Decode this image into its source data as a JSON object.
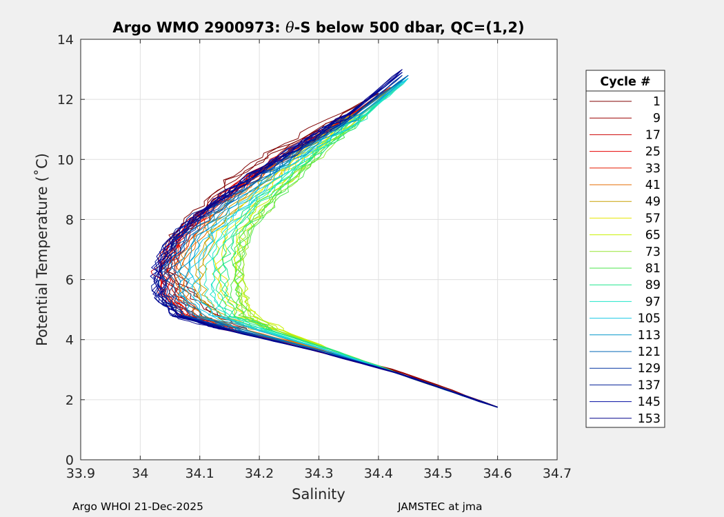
{
  "chart_data": {
    "type": "line",
    "title_parts": {
      "prefix": "Argo WMO 2900973: ",
      "theta": "θ",
      "suffix": "-S below 500 dbar,  QC=(1,2)"
    },
    "xlabel": "Salinity",
    "ylabel": "Potential Temperature (˚C)",
    "xlim": [
      33.9,
      34.7
    ],
    "ylim": [
      0,
      14
    ],
    "x_ticks": [
      33.9,
      34.0,
      34.1,
      34.2,
      34.3,
      34.4,
      34.5,
      34.6,
      34.7
    ],
    "x_tick_labels": [
      "33.9",
      "34",
      "34.1",
      "34.2",
      "34.3",
      "34.4",
      "34.5",
      "34.6",
      "34.7"
    ],
    "y_ticks": [
      0,
      2,
      4,
      6,
      8,
      10,
      12,
      14
    ],
    "y_tick_labels": [
      "0",
      "2",
      "4",
      "6",
      "8",
      "10",
      "12",
      "14"
    ],
    "grid": true,
    "legend_title": "Cycle #",
    "legend_placement": "right-outside",
    "series": [
      {
        "name": "1",
        "color": "#800000",
        "salinity": [
          34.6,
          34.44,
          34.32,
          34.2,
          34.13,
          34.09,
          34.05,
          34.06,
          34.1,
          34.15,
          34.22,
          34.31,
          34.4
        ],
        "temperature": [
          1.75,
          2.9,
          3.6,
          4.3,
          4.8,
          5.5,
          6.3,
          7.5,
          8.3,
          9.3,
          10.2,
          11.2,
          12.2
        ]
      },
      {
        "name": "9",
        "color": "#9b0000",
        "salinity": [
          34.6,
          34.44,
          34.31,
          34.18,
          34.1,
          34.06,
          34.04,
          34.06,
          34.11,
          34.18,
          34.26,
          34.34,
          34.42
        ],
        "temperature": [
          1.75,
          2.9,
          3.6,
          4.3,
          4.8,
          5.5,
          6.4,
          7.4,
          8.4,
          9.4,
          10.4,
          11.3,
          12.4
        ]
      },
      {
        "name": "17",
        "color": "#cc0000",
        "salinity": [
          34.6,
          34.43,
          34.3,
          34.16,
          34.08,
          34.04,
          34.03,
          34.06,
          34.12,
          34.19,
          34.27,
          34.35,
          34.42
        ],
        "temperature": [
          1.75,
          2.9,
          3.6,
          4.3,
          4.8,
          5.5,
          6.3,
          7.4,
          8.5,
          9.5,
          10.5,
          11.4,
          12.4
        ]
      },
      {
        "name": "25",
        "color": "#e60000",
        "salinity": [
          34.6,
          34.43,
          34.3,
          34.15,
          34.07,
          34.04,
          34.04,
          34.07,
          34.12,
          34.19,
          34.27,
          34.35,
          34.42
        ],
        "temperature": [
          1.75,
          2.9,
          3.6,
          4.3,
          4.8,
          5.5,
          6.4,
          7.5,
          8.5,
          9.5,
          10.5,
          11.4,
          12.4
        ]
      },
      {
        "name": "33",
        "color": "#e61a00",
        "salinity": [
          34.6,
          34.43,
          34.31,
          34.16,
          34.08,
          34.05,
          34.05,
          34.08,
          34.13,
          34.2,
          34.27,
          34.35,
          34.42
        ],
        "temperature": [
          1.75,
          2.9,
          3.6,
          4.3,
          4.8,
          5.5,
          6.4,
          7.5,
          8.5,
          9.5,
          10.5,
          11.4,
          12.4
        ]
      },
      {
        "name": "41",
        "color": "#e66b00",
        "salinity": [
          34.6,
          34.43,
          34.32,
          34.18,
          34.1,
          34.07,
          34.07,
          34.1,
          34.15,
          34.21,
          34.28,
          34.36,
          34.43
        ],
        "temperature": [
          1.75,
          2.9,
          3.6,
          4.3,
          4.8,
          5.5,
          6.5,
          7.6,
          8.6,
          9.6,
          10.6,
          11.5,
          12.5
        ]
      },
      {
        "name": "49",
        "color": "#c8a000",
        "salinity": [
          34.6,
          34.43,
          34.32,
          34.2,
          34.13,
          34.1,
          34.1,
          34.12,
          34.17,
          34.23,
          34.29,
          34.36,
          34.43
        ],
        "temperature": [
          1.75,
          2.9,
          3.6,
          4.3,
          4.8,
          5.5,
          6.5,
          7.6,
          8.6,
          9.6,
          10.6,
          11.5,
          12.5
        ]
      },
      {
        "name": "57",
        "color": "#e6e600",
        "salinity": [
          34.6,
          34.43,
          34.33,
          34.23,
          34.17,
          34.14,
          34.13,
          34.14,
          34.19,
          34.24,
          34.3,
          34.37,
          34.44
        ],
        "temperature": [
          1.75,
          2.9,
          3.6,
          4.3,
          4.8,
          5.5,
          6.5,
          7.6,
          8.6,
          9.6,
          10.6,
          11.5,
          12.5
        ]
      },
      {
        "name": "65",
        "color": "#c8f000",
        "salinity": [
          34.6,
          34.43,
          34.33,
          34.24,
          34.19,
          34.17,
          34.16,
          34.17,
          34.21,
          34.26,
          34.31,
          34.37,
          34.44
        ],
        "temperature": [
          1.75,
          2.9,
          3.6,
          4.3,
          4.8,
          5.5,
          6.5,
          7.6,
          8.6,
          9.6,
          10.6,
          11.5,
          12.5
        ]
      },
      {
        "name": "73",
        "color": "#96e632",
        "salinity": [
          34.6,
          34.43,
          34.33,
          34.23,
          34.18,
          34.17,
          34.17,
          34.18,
          34.22,
          34.27,
          34.32,
          34.38,
          34.44
        ],
        "temperature": [
          1.75,
          2.9,
          3.6,
          4.3,
          4.8,
          5.5,
          6.5,
          7.6,
          8.6,
          9.6,
          10.6,
          11.5,
          12.6
        ]
      },
      {
        "name": "81",
        "color": "#4be64b",
        "salinity": [
          34.6,
          34.43,
          34.33,
          34.22,
          34.17,
          34.16,
          34.16,
          34.18,
          34.22,
          34.27,
          34.32,
          34.38,
          34.44
        ],
        "temperature": [
          1.75,
          2.9,
          3.6,
          4.3,
          4.8,
          5.5,
          6.5,
          7.6,
          8.6,
          9.6,
          10.6,
          11.5,
          12.6
        ]
      },
      {
        "name": "89",
        "color": "#1ee68c",
        "salinity": [
          34.6,
          34.43,
          34.33,
          34.22,
          34.15,
          34.14,
          34.14,
          34.16,
          34.2,
          34.26,
          34.32,
          34.38,
          34.44
        ],
        "temperature": [
          1.75,
          2.9,
          3.6,
          4.3,
          4.8,
          5.5,
          6.5,
          7.6,
          8.6,
          9.6,
          10.6,
          11.5,
          12.6
        ]
      },
      {
        "name": "97",
        "color": "#1ee6c8",
        "salinity": [
          34.6,
          34.43,
          34.32,
          34.21,
          34.14,
          34.12,
          34.12,
          34.14,
          34.19,
          34.25,
          34.31,
          34.38,
          34.45
        ],
        "temperature": [
          1.75,
          2.9,
          3.6,
          4.3,
          4.8,
          5.5,
          6.5,
          7.6,
          8.6,
          9.6,
          10.6,
          11.5,
          12.7
        ]
      },
      {
        "name": "105",
        "color": "#19c8e6",
        "salinity": [
          34.6,
          34.43,
          34.32,
          34.2,
          34.12,
          34.09,
          34.09,
          34.12,
          34.17,
          34.23,
          34.3,
          34.37,
          34.45
        ],
        "temperature": [
          1.75,
          2.9,
          3.6,
          4.3,
          4.8,
          5.5,
          6.4,
          7.5,
          8.5,
          9.5,
          10.5,
          11.5,
          12.7
        ]
      },
      {
        "name": "113",
        "color": "#0096c8",
        "salinity": [
          34.6,
          34.43,
          34.31,
          34.18,
          34.1,
          34.07,
          34.07,
          34.1,
          34.15,
          34.22,
          34.29,
          34.37,
          34.45
        ],
        "temperature": [
          1.75,
          2.9,
          3.6,
          4.3,
          4.8,
          5.5,
          6.4,
          7.5,
          8.5,
          9.5,
          10.5,
          11.5,
          12.8
        ]
      },
      {
        "name": "121",
        "color": "#0064b4",
        "salinity": [
          34.6,
          34.43,
          34.31,
          34.17,
          34.08,
          34.05,
          34.05,
          34.08,
          34.14,
          34.21,
          34.28,
          34.36,
          34.45
        ],
        "temperature": [
          1.75,
          2.9,
          3.6,
          4.3,
          4.8,
          5.5,
          6.4,
          7.5,
          8.5,
          9.5,
          10.5,
          11.5,
          12.8
        ]
      },
      {
        "name": "129",
        "color": "#0032a0",
        "salinity": [
          34.6,
          34.43,
          34.3,
          34.16,
          34.07,
          34.04,
          34.04,
          34.07,
          34.13,
          34.2,
          34.28,
          34.36,
          34.44
        ],
        "temperature": [
          1.75,
          2.9,
          3.6,
          4.3,
          4.8,
          5.5,
          6.4,
          7.5,
          8.5,
          9.5,
          10.5,
          11.5,
          12.8
        ]
      },
      {
        "name": "137",
        "color": "#001e96",
        "salinity": [
          34.6,
          34.43,
          34.3,
          34.15,
          34.06,
          34.03,
          34.03,
          34.06,
          34.12,
          34.19,
          34.27,
          34.35,
          34.44
        ],
        "temperature": [
          1.75,
          2.9,
          3.6,
          4.3,
          4.8,
          5.5,
          6.4,
          7.5,
          8.5,
          9.5,
          10.5,
          11.5,
          12.9
        ]
      },
      {
        "name": "145",
        "color": "#000aa0",
        "salinity": [
          34.6,
          34.43,
          34.3,
          34.15,
          34.06,
          34.03,
          34.03,
          34.06,
          34.12,
          34.19,
          34.27,
          34.35,
          34.44
        ],
        "temperature": [
          1.75,
          2.9,
          3.6,
          4.3,
          4.8,
          5.5,
          6.4,
          7.5,
          8.5,
          9.5,
          10.5,
          11.5,
          12.9
        ]
      },
      {
        "name": "153",
        "color": "#00008c",
        "salinity": [
          34.6,
          34.43,
          34.3,
          34.15,
          34.06,
          34.03,
          34.03,
          34.06,
          34.12,
          34.19,
          34.27,
          34.35,
          34.44
        ],
        "temperature": [
          1.75,
          2.9,
          3.6,
          4.3,
          4.8,
          5.5,
          6.4,
          7.5,
          8.5,
          9.5,
          10.5,
          11.5,
          13.0
        ]
      }
    ]
  },
  "footer": {
    "left": "Argo WHOI 21-Dec-2025",
    "right": "JAMSTEC at jma"
  }
}
